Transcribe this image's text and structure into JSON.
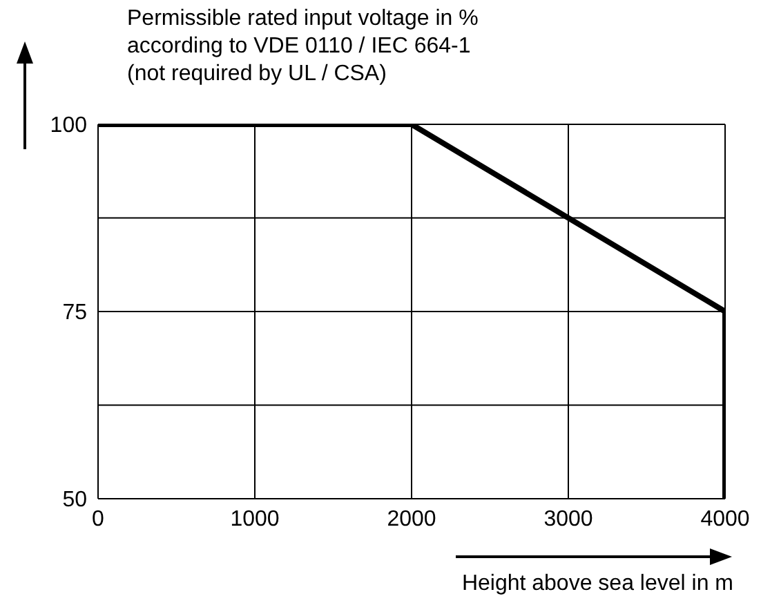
{
  "chart_data": {
    "type": "line",
    "title": "Permissible rated input voltage in %\naccording to VDE 0110 / IEC 664-1\n(not required by UL / CSA)",
    "xlabel": "Height above sea level in m",
    "series": [
      {
        "color": "#000000",
        "x": [
          0,
          2000,
          4000,
          4000
        ],
        "values": [
          100,
          100,
          75,
          50
        ]
      }
    ],
    "xlim": [
      0,
      4000
    ],
    "xticks": [
      0,
      1000,
      2000,
      3000,
      4000
    ],
    "ylim": [
      50,
      100
    ],
    "yticks": [
      50,
      {
        "value": 62.5,
        "label": null
      },
      75,
      {
        "value": 87.5,
        "label": null
      },
      100
    ],
    "grid": true,
    "marker": "none",
    "line_style": "solid",
    "legend": false
  }
}
